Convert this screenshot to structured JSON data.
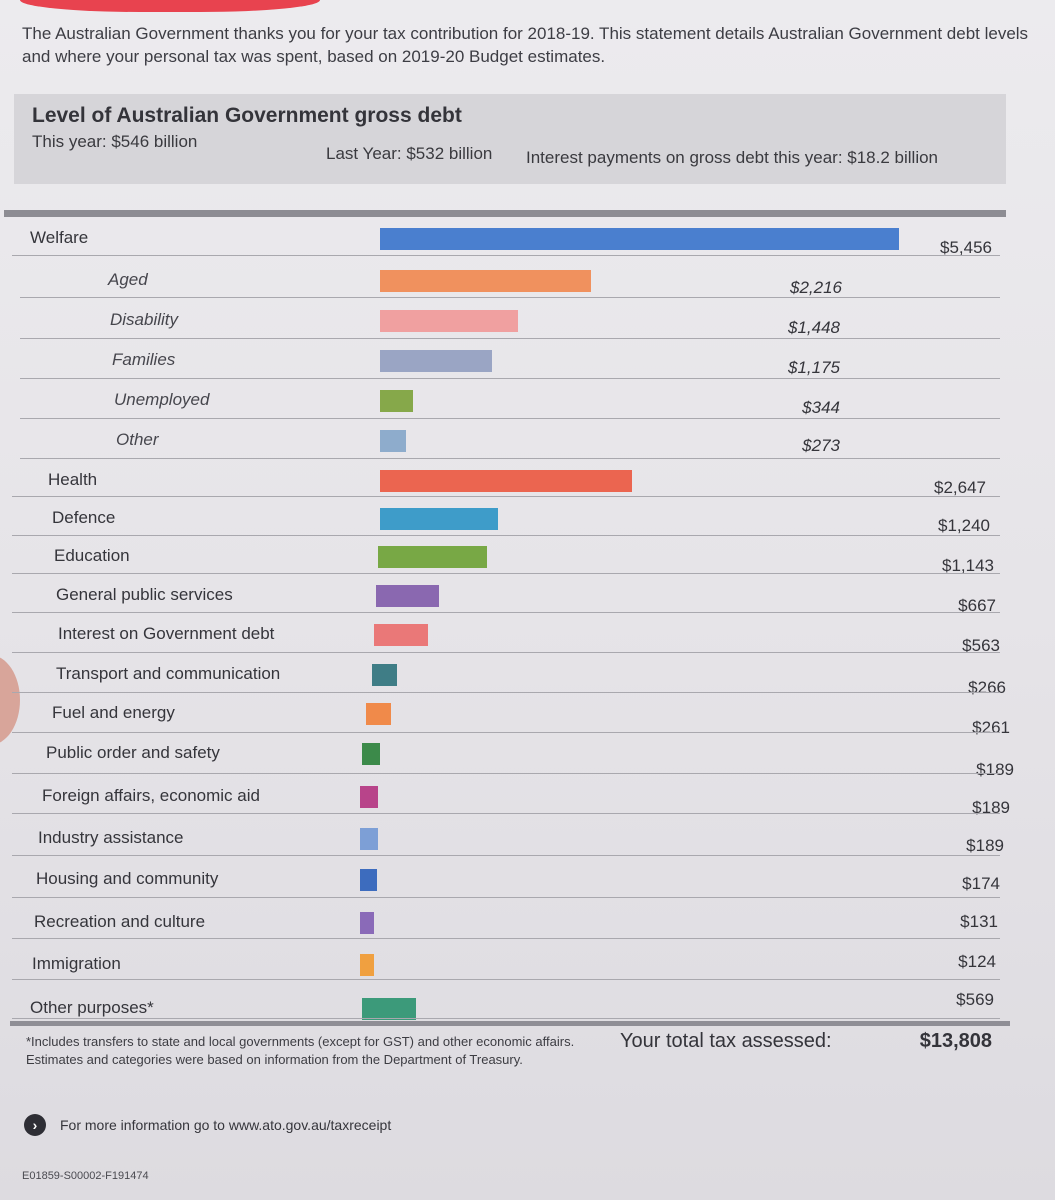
{
  "intro": {
    "line1": "The Australian Government thanks you for your tax contribution for 2018-19. This statement details Australian Government debt levels",
    "line2": "and where your personal tax was spent, based on 2019-20 Budget estimates."
  },
  "debt": {
    "title": "Level of Australian Government gross debt",
    "this_year": "This year: $546 billion",
    "last_year": "Last Year: $532 billion",
    "interest": "Interest payments on gross debt this year: $18.2 billion"
  },
  "chart_data": {
    "type": "bar",
    "orientation": "horizontal",
    "categories": [
      "Welfare",
      "Aged",
      "Disability",
      "Families",
      "Unemployed",
      "Other",
      "Health",
      "Defence",
      "Education",
      "General public services",
      "Interest on Government debt",
      "Transport and communication",
      "Fuel and energy",
      "Public order and safety",
      "Foreign affairs, economic aid",
      "Industry assistance",
      "Housing and community",
      "Recreation and culture",
      "Immigration",
      "Other purposes*"
    ],
    "values": [
      5456,
      2216,
      1448,
      1175,
      344,
      273,
      2647,
      1240,
      1143,
      667,
      563,
      266,
      261,
      189,
      189,
      189,
      174,
      131,
      124,
      569
    ],
    "value_labels": [
      "$5,456",
      "$2,216",
      "$1,448",
      "$1,175",
      "$344",
      "$273",
      "$2,647",
      "$1,240",
      "$1,143",
      "$667",
      "$563",
      "$266",
      "$261",
      "$189",
      "$189",
      "$189",
      "$174",
      "$131",
      "$124",
      "$569"
    ],
    "subcategory_of": [
      null,
      "Welfare",
      "Welfare",
      "Welfare",
      "Welfare",
      "Welfare",
      null,
      null,
      null,
      null,
      null,
      null,
      null,
      null,
      null,
      null,
      null,
      null,
      null,
      null
    ],
    "colors": [
      "#4a7fcf",
      "#f0915e",
      "#f0a0a0",
      "#9aa5c4",
      "#86a84a",
      "#8eaccc",
      "#eb6550",
      "#3e9cc9",
      "#78a845",
      "#8a68b0",
      "#ea7878",
      "#3f7d86",
      "#f08a4a",
      "#3c8a4a",
      "#b8448a",
      "#7d9fd6",
      "#3d6cbe",
      "#8a6ab8",
      "#f0a040",
      "#3c9a7a"
    ]
  },
  "footer": {
    "footnote_line1": "*Includes transfers to state and local governments (except for GST) and other economic affairs.",
    "footnote_line2": "Estimates and categories were based on information from the Department of Treasury.",
    "total_label": "Your total tax assessed:",
    "total_value": "$13,808",
    "more_info": "For more information go to www.ato.gov.au/taxreceipt",
    "arrow_icon": "chevron-right-icon",
    "code": "E01859-S00002-F191474"
  }
}
